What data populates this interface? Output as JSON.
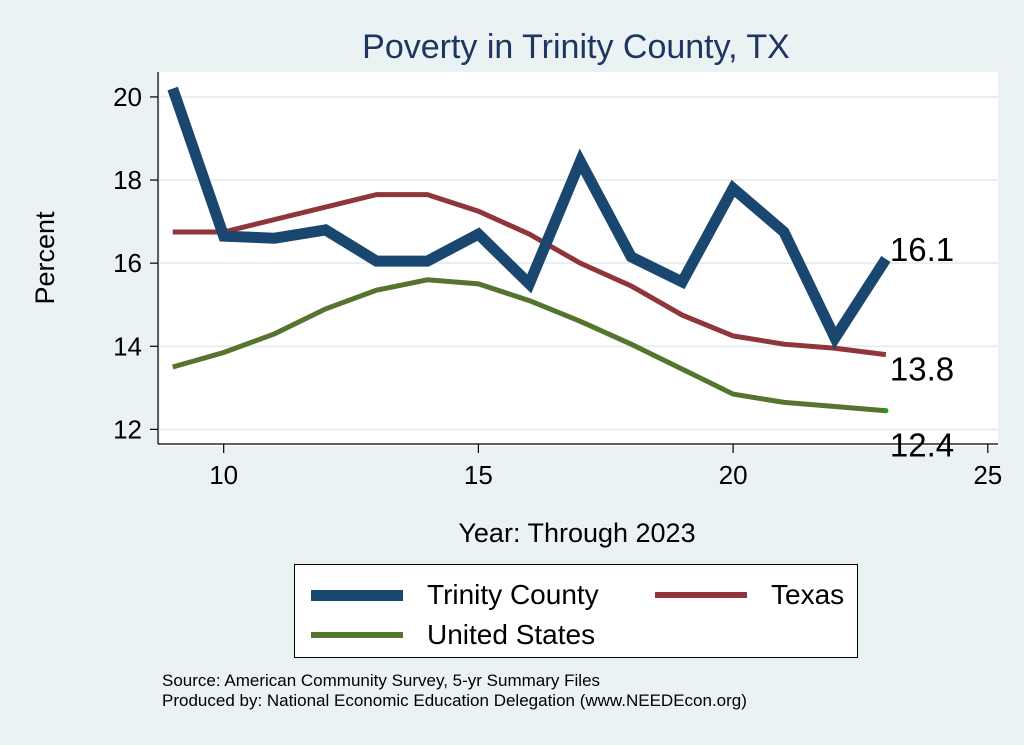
{
  "chart_data": {
    "type": "line",
    "title": "Poverty in Trinity County, TX",
    "xlabel": "Year: Through 2023",
    "ylabel": "Percent",
    "xlim": [
      8.75,
      25.2
    ],
    "ylim": [
      11.6,
      20.6
    ],
    "x_ticks": [
      10,
      15,
      20,
      25
    ],
    "y_ticks": [
      12,
      14,
      16,
      18,
      20
    ],
    "grid": "horizontal",
    "x": [
      9,
      10,
      11,
      12,
      13,
      14,
      15,
      16,
      17,
      18,
      19,
      20,
      21,
      22,
      23
    ],
    "series": [
      {
        "name": "Trinity County",
        "color": "#1a476f",
        "values": [
          20.2,
          16.65,
          16.6,
          16.8,
          16.05,
          16.05,
          16.7,
          15.5,
          18.45,
          16.15,
          15.55,
          17.8,
          16.75,
          14.2,
          16.1
        ],
        "end_label": "16.1"
      },
      {
        "name": "Texas",
        "color": "#90353b",
        "values": [
          16.75,
          16.75,
          17.05,
          17.35,
          17.65,
          17.65,
          17.25,
          16.7,
          16.0,
          15.45,
          14.75,
          14.25,
          14.05,
          13.95,
          13.8
        ],
        "end_label": "13.8"
      },
      {
        "name": "United States",
        "color": "#55752f",
        "values": [
          13.5,
          13.85,
          14.3,
          14.9,
          15.35,
          15.6,
          15.5,
          15.1,
          14.6,
          14.05,
          13.45,
          12.85,
          12.65,
          12.55,
          12.45
        ],
        "end_label": "12.4"
      }
    ],
    "legend": {
      "position": "bottom",
      "items": [
        {
          "label": "Trinity County",
          "color": "#1a476f"
        },
        {
          "label": "Texas",
          "color": "#90353b"
        },
        {
          "label": "United States",
          "color": "#55752f"
        }
      ]
    },
    "notes": [
      "Source: American Community Survey, 5-yr Summary Files",
      "Produced by: National Economic Education Delegation (www.NEEDEcon.org)"
    ]
  }
}
